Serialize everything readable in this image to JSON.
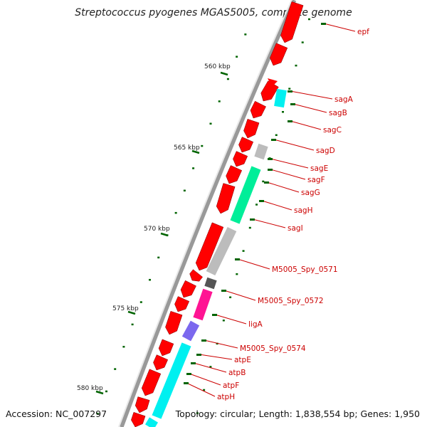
{
  "title": "Streptococcus pyogenes MGAS5005, complete genome",
  "accession": "Accession: NC_007297",
  "summary": "Topology: circular; Length: 1,838,554 bp; Genes: 1,950",
  "colors": {
    "forward_gene": "#ff0000",
    "rna_gene": "#00f0f0",
    "secondary_gene": "#00ee99",
    "unknown_gene": "#bcbcbc",
    "dark_gene": "#555555",
    "pink_gene": "#ff1493",
    "violet_gene": "#7b68ee",
    "label": "#cc0000",
    "tick": "#006400",
    "backbone": "#999999"
  },
  "scale": {
    "ticks": [
      "560 kbp",
      "565 kbp",
      "570 kbp",
      "575 kbp",
      "580 kbp"
    ]
  },
  "genes": [
    {
      "label": "epf"
    },
    {
      "label": "sagA"
    },
    {
      "label": "sagB"
    },
    {
      "label": "sagC"
    },
    {
      "label": "sagD"
    },
    {
      "label": "sagE"
    },
    {
      "label": "sagF"
    },
    {
      "label": "sagG"
    },
    {
      "label": "sagH"
    },
    {
      "label": "sagI"
    },
    {
      "label": "M5005_Spy_0571"
    },
    {
      "label": "M5005_Spy_0572"
    },
    {
      "label": "ligA"
    },
    {
      "label": "M5005_Spy_0574"
    },
    {
      "label": "atpE"
    },
    {
      "label": "atpB"
    },
    {
      "label": "atpF"
    },
    {
      "label": "atpH"
    }
  ]
}
